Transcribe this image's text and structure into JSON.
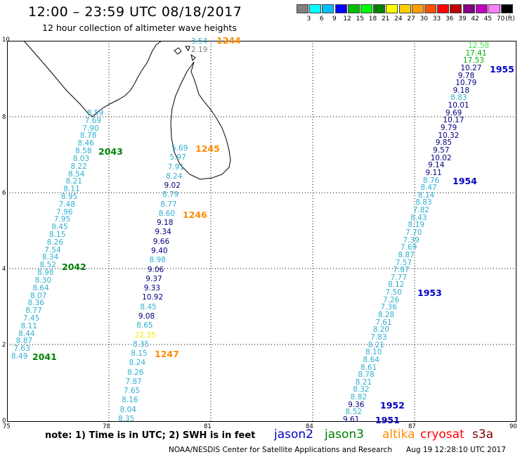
{
  "header": {
    "title": "12:00 – 23:59 UTC 08/18/2017",
    "subtitle": "12 hour collection of altimeter wave heights"
  },
  "legend": {
    "colors": [
      "#808080",
      "#00ffff",
      "#00c0ff",
      "#0000ff",
      "#00c000",
      "#00ff00",
      "#008000",
      "#ffff00",
      "#ffd000",
      "#ffa000",
      "#ff5000",
      "#ff0000",
      "#c00000",
      "#800080",
      "#c000c0",
      "#ff80ff",
      "#000000"
    ],
    "labels": [
      "3",
      "6",
      "9",
      "12",
      "15",
      "18",
      "21",
      "24",
      "27",
      "30",
      "33",
      "36",
      "39",
      "42",
      "45",
      "70"
    ],
    "unit": "(ft)"
  },
  "axes": {
    "x_ticks": [
      "75",
      "78",
      "81",
      "84",
      "87",
      "90"
    ],
    "y_ticks": [
      "0",
      "2",
      "4",
      "6",
      "8",
      "10"
    ]
  },
  "colors": {
    "jason2": "#0000c0",
    "jason3": "#008000",
    "altika": "#ff8c00",
    "cryosat": "#ff0000",
    "s3a": "#800000",
    "gray": "#808080",
    "lightgreen": "#40e040",
    "green": "#00b000",
    "cyan": "#30b0d0",
    "yellow": "#f0f000",
    "navy": "#000080"
  },
  "tracks": {
    "left": {
      "times": [
        {
          "t": "2043",
          "c": "jason3"
        },
        {
          "t": "2042",
          "c": "jason3"
        },
        {
          "t": "2041",
          "c": "jason3"
        }
      ],
      "values": [
        {
          "v": "8.59",
          "c": "cyan"
        },
        {
          "v": "7.69",
          "c": "cyan"
        },
        {
          "v": "7.90",
          "c": "cyan"
        },
        {
          "v": "8.78",
          "c": "cyan"
        },
        {
          "v": "8.46",
          "c": "cyan"
        },
        {
          "v": "8.58",
          "c": "cyan"
        },
        {
          "v": "8.03",
          "c": "cyan"
        },
        {
          "v": "8.22",
          "c": "cyan"
        },
        {
          "v": "8.54",
          "c": "cyan"
        },
        {
          "v": "8.21",
          "c": "cyan"
        },
        {
          "v": "8.11",
          "c": "cyan"
        },
        {
          "v": "8.95",
          "c": "cyan"
        },
        {
          "v": "7.48",
          "c": "cyan"
        },
        {
          "v": "7.96",
          "c": "cyan"
        },
        {
          "v": "7.95",
          "c": "cyan"
        },
        {
          "v": "8.45",
          "c": "cyan"
        },
        {
          "v": "8.15",
          "c": "cyan"
        },
        {
          "v": "8.26",
          "c": "cyan"
        },
        {
          "v": "7.54",
          "c": "cyan"
        },
        {
          "v": "8.34",
          "c": "cyan"
        },
        {
          "v": "8.52",
          "c": "cyan"
        },
        {
          "v": "8.98",
          "c": "cyan"
        },
        {
          "v": "8.30",
          "c": "cyan"
        },
        {
          "v": "8.64",
          "c": "cyan"
        },
        {
          "v": "8.07",
          "c": "cyan"
        },
        {
          "v": "8.36",
          "c": "cyan"
        },
        {
          "v": "8.77",
          "c": "cyan"
        },
        {
          "v": "7.45",
          "c": "cyan"
        },
        {
          "v": "8.11",
          "c": "cyan"
        },
        {
          "v": "8.44",
          "c": "cyan"
        },
        {
          "v": "8.87",
          "c": "cyan"
        },
        {
          "v": "7.63",
          "c": "cyan"
        },
        {
          "v": "8.49",
          "c": "cyan"
        }
      ]
    },
    "middle": {
      "times": [
        {
          "t": "1244",
          "c": "altika"
        },
        {
          "t": "1245",
          "c": "altika"
        },
        {
          "t": "1246",
          "c": "altika"
        },
        {
          "t": "1247",
          "c": "altika"
        }
      ],
      "top_values": [
        {
          "v": "3.54",
          "c": "cyan"
        },
        {
          "v": "2.19",
          "c": "gray"
        }
      ],
      "values": [
        {
          "v": "5.69",
          "c": "cyan"
        },
        {
          "v": "5.97",
          "c": "cyan"
        },
        {
          "v": "7.91",
          "c": "cyan"
        },
        {
          "v": "8.24",
          "c": "cyan"
        },
        {
          "v": "9.02",
          "c": "navy"
        },
        {
          "v": "8.79",
          "c": "cyan"
        },
        {
          "v": "8.77",
          "c": "cyan"
        },
        {
          "v": "8.60",
          "c": "cyan"
        },
        {
          "v": "9.18",
          "c": "navy"
        },
        {
          "v": "9.34",
          "c": "navy"
        },
        {
          "v": "9.66",
          "c": "navy"
        },
        {
          "v": "9.40",
          "c": "navy"
        },
        {
          "v": "8.98",
          "c": "cyan"
        },
        {
          "v": "9.06",
          "c": "navy"
        },
        {
          "v": "9.37",
          "c": "navy"
        },
        {
          "v": "9.33",
          "c": "navy"
        },
        {
          "v": "10.92",
          "c": "navy"
        },
        {
          "v": "8.45",
          "c": "cyan"
        },
        {
          "v": "9.08",
          "c": "navy"
        },
        {
          "v": "8.65",
          "c": "cyan"
        },
        {
          "v": "22.35",
          "c": "yellow"
        },
        {
          "v": "8.35",
          "c": "cyan"
        },
        {
          "v": "8.15",
          "c": "cyan"
        },
        {
          "v": "8.24",
          "c": "cyan"
        },
        {
          "v": "8.26",
          "c": "cyan"
        },
        {
          "v": "7.87",
          "c": "cyan"
        },
        {
          "v": "7.65",
          "c": "cyan"
        },
        {
          "v": "8.16",
          "c": "cyan"
        },
        {
          "v": "8.04",
          "c": "cyan"
        },
        {
          "v": "8.35",
          "c": "cyan"
        }
      ]
    },
    "right": {
      "times": [
        {
          "t": "1955",
          "c": "jason2"
        },
        {
          "t": "1954",
          "c": "jason2"
        },
        {
          "t": "1953",
          "c": "jason2"
        },
        {
          "t": "1952",
          "c": "jason2"
        },
        {
          "t": "1951",
          "c": "jason2"
        }
      ],
      "values": [
        {
          "v": "12.58",
          "c": "lightgreen"
        },
        {
          "v": "17.41",
          "c": "green"
        },
        {
          "v": "17.53",
          "c": "green"
        },
        {
          "v": "10.27",
          "c": "navy"
        },
        {
          "v": "9.78",
          "c": "navy"
        },
        {
          "v": "10.79",
          "c": "navy"
        },
        {
          "v": "9.18",
          "c": "navy"
        },
        {
          "v": "8.83",
          "c": "cyan"
        },
        {
          "v": "10.01",
          "c": "navy"
        },
        {
          "v": "9.69",
          "c": "navy"
        },
        {
          "v": "10.17",
          "c": "navy"
        },
        {
          "v": "9.79",
          "c": "navy"
        },
        {
          "v": "10.32",
          "c": "navy"
        },
        {
          "v": "9.85",
          "c": "navy"
        },
        {
          "v": "9.57",
          "c": "navy"
        },
        {
          "v": "10.02",
          "c": "navy"
        },
        {
          "v": "9.14",
          "c": "navy"
        },
        {
          "v": "9.11",
          "c": "navy"
        },
        {
          "v": "8.76",
          "c": "cyan"
        },
        {
          "v": "8.47",
          "c": "cyan"
        },
        {
          "v": "8.14",
          "c": "cyan"
        },
        {
          "v": "8.83",
          "c": "cyan"
        },
        {
          "v": "7.82",
          "c": "cyan"
        },
        {
          "v": "8.43",
          "c": "cyan"
        },
        {
          "v": "8.19",
          "c": "cyan"
        },
        {
          "v": "7.70",
          "c": "cyan"
        },
        {
          "v": "7.39",
          "c": "cyan"
        },
        {
          "v": "7.69",
          "c": "cyan"
        },
        {
          "v": "8.87",
          "c": "cyan"
        },
        {
          "v": "7.57",
          "c": "cyan"
        },
        {
          "v": "7.87",
          "c": "cyan"
        },
        {
          "v": "7.77",
          "c": "cyan"
        },
        {
          "v": "8.12",
          "c": "cyan"
        },
        {
          "v": "7.50",
          "c": "cyan"
        },
        {
          "v": "7.26",
          "c": "cyan"
        },
        {
          "v": "7.36",
          "c": "cyan"
        },
        {
          "v": "8.28",
          "c": "cyan"
        },
        {
          "v": "7.61",
          "c": "cyan"
        },
        {
          "v": "8.20",
          "c": "cyan"
        },
        {
          "v": "7.83",
          "c": "cyan"
        },
        {
          "v": "8.21",
          "c": "cyan"
        },
        {
          "v": "8.10",
          "c": "cyan"
        },
        {
          "v": "8.64",
          "c": "cyan"
        },
        {
          "v": "8.61",
          "c": "cyan"
        },
        {
          "v": "8.78",
          "c": "cyan"
        },
        {
          "v": "8.21",
          "c": "cyan"
        },
        {
          "v": "8.32",
          "c": "cyan"
        },
        {
          "v": "8.82",
          "c": "cyan"
        },
        {
          "v": "9.36",
          "c": "navy"
        },
        {
          "v": "8.52",
          "c": "cyan"
        },
        {
          "v": "9.61",
          "c": "navy"
        }
      ]
    }
  },
  "footer": {
    "note": "note:  1) Time is in UTC;  2) SWH is in feet",
    "satellites": [
      {
        "name": "jason2",
        "c": "jason2"
      },
      {
        "name": "jason3",
        "c": "jason3"
      },
      {
        "name": "altika",
        "c": "altika"
      },
      {
        "name": "cryosat",
        "c": "cryosat"
      },
      {
        "name": "s3a",
        "c": "s3a"
      }
    ],
    "credit": "NOAA/NESDIS Center for Satellite Applications and Research",
    "timestamp": "Aug 19 12:28:10 UTC 2017"
  }
}
